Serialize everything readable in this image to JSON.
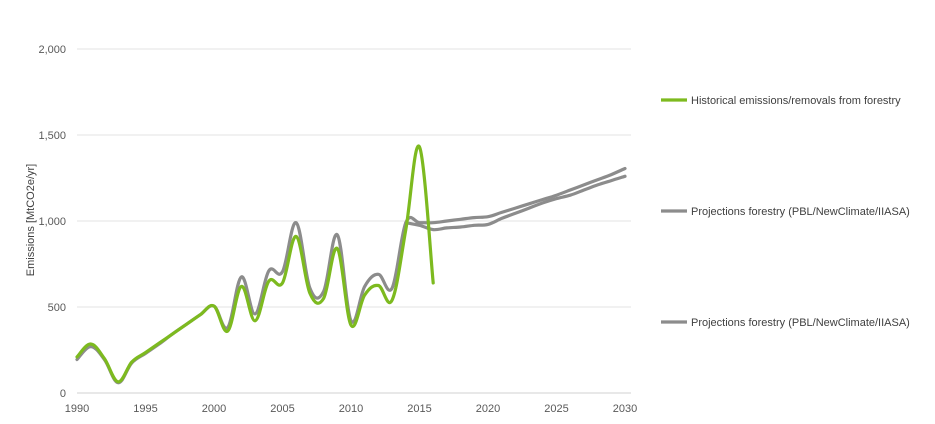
{
  "chart_data": {
    "type": "line",
    "title": "",
    "xlabel": "",
    "ylabel": "Emissions [MtCO2e/yr]",
    "xlim": [
      1990,
      2030
    ],
    "ylim": [
      0,
      2000
    ],
    "x_ticks": [
      1990,
      1995,
      2000,
      2005,
      2010,
      2015,
      2020,
      2025,
      2030
    ],
    "x_tick_labels": [
      "1990",
      "1995",
      "2000",
      "2005",
      "2010",
      "2015",
      "2020",
      "2025",
      "2030"
    ],
    "y_ticks": [
      0,
      500,
      1000,
      1500,
      2000
    ],
    "y_tick_labels": [
      "0",
      "500",
      "1,000",
      "1,500",
      "2,000"
    ],
    "grid": "horizontal",
    "legend_position": "right",
    "series": [
      {
        "name": "Historical emissions/removals from forestry",
        "color": "#7dba1f",
        "x": [
          1990,
          1991,
          1992,
          1993,
          1994,
          1995,
          1996,
          1997,
          1998,
          1999,
          2000,
          2001,
          2002,
          2003,
          2004,
          2005,
          2006,
          2007,
          2008,
          2009,
          2010,
          2011,
          2012,
          2013,
          2014,
          2015,
          2016
        ],
        "y": [
          210,
          285,
          200,
          65,
          180,
          235,
          290,
          345,
          400,
          455,
          505,
          360,
          620,
          420,
          650,
          640,
          910,
          580,
          550,
          840,
          395,
          570,
          625,
          540,
          950,
          1430,
          640
        ]
      },
      {
        "name": "Projections forestry (PBL/NewClimate/IIASA)",
        "color": "#8c8c8c",
        "x": [
          1990,
          1991,
          1992,
          1993,
          1994,
          1995,
          1996,
          1997,
          1998,
          1999,
          2000,
          2001,
          2002,
          2003,
          2004,
          2005,
          2006,
          2007,
          2008,
          2009,
          2010,
          2011,
          2012,
          2013,
          2014,
          2015,
          2016,
          2017,
          2018,
          2019,
          2020,
          2021,
          2022,
          2023,
          2024,
          2025,
          2026,
          2027,
          2028,
          2029,
          2030
        ],
        "y": [
          195,
          270,
          195,
          60,
          175,
          230,
          285,
          345,
          400,
          455,
          505,
          380,
          675,
          460,
          710,
          705,
          990,
          610,
          590,
          920,
          420,
          620,
          690,
          610,
          990,
          990,
          990,
          1000,
          1010,
          1020,
          1025,
          1050,
          1075,
          1100,
          1125,
          1150,
          1180,
          1210,
          1240,
          1270,
          1305
        ]
      },
      {
        "name": "Projections forestry (PBL/NewClimate/IIASA)",
        "color": "#8c8c8c",
        "x": [
          2014,
          2015,
          2016,
          2017,
          2018,
          2019,
          2020,
          2021,
          2022,
          2023,
          2024,
          2025,
          2026,
          2027,
          2028,
          2029,
          2030
        ],
        "y": [
          990,
          975,
          950,
          960,
          965,
          975,
          980,
          1015,
          1045,
          1075,
          1105,
          1130,
          1150,
          1180,
          1210,
          1235,
          1260
        ]
      }
    ]
  }
}
